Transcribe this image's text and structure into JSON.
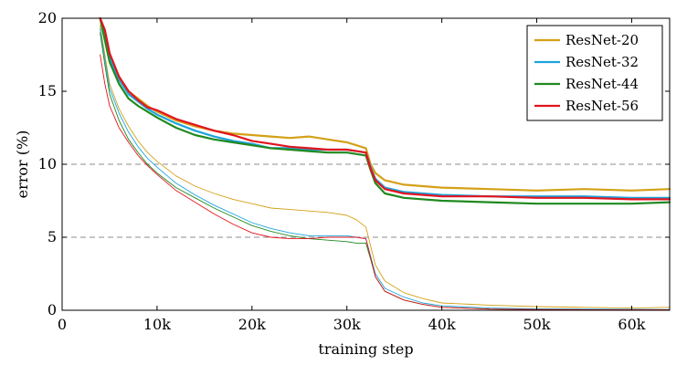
{
  "chart_data": {
    "type": "line",
    "xlabel": "training step",
    "ylabel": "error (%)",
    "xlim": [
      0,
      64000
    ],
    "ylim": [
      0,
      20
    ],
    "x_ticks": [
      {
        "value": 0,
        "label": "0"
      },
      {
        "value": 10000,
        "label": "10k"
      },
      {
        "value": 20000,
        "label": "20k"
      },
      {
        "value": 30000,
        "label": "30k"
      },
      {
        "value": 40000,
        "label": "40k"
      },
      {
        "value": 50000,
        "label": "50k"
      },
      {
        "value": 60000,
        "label": "60k"
      }
    ],
    "y_ticks": [
      {
        "value": 0,
        "label": "0"
      },
      {
        "value": 5,
        "label": "5"
      },
      {
        "value": 10,
        "label": "10"
      },
      {
        "value": 15,
        "label": "15"
      },
      {
        "value": 20,
        "label": "20"
      }
    ],
    "reference_lines": [
      5,
      10
    ],
    "legend_position": "top-right",
    "series": [
      {
        "name": "ResNet-20",
        "color": "#d4a017",
        "style": "thick",
        "x": [
          4000,
          4500,
          5000,
          6000,
          7000,
          8000,
          9000,
          10000,
          12000,
          14000,
          16000,
          18000,
          20000,
          22000,
          24000,
          26000,
          28000,
          30000,
          31000,
          32000,
          32500,
          33000,
          34000,
          36000,
          40000,
          45000,
          50000,
          55000,
          60000,
          64000
        ],
        "y": [
          20.5,
          19.0,
          17.5,
          16.0,
          15.0,
          14.5,
          14.0,
          13.6,
          13.0,
          12.6,
          12.3,
          12.1,
          12.0,
          11.9,
          11.8,
          11.9,
          11.7,
          11.5,
          11.3,
          11.1,
          10.0,
          9.4,
          8.9,
          8.6,
          8.4,
          8.3,
          8.2,
          8.3,
          8.2,
          8.3
        ]
      },
      {
        "name": "ResNet-32",
        "color": "#1ea3dc",
        "style": "thick",
        "x": [
          4000,
          4500,
          5000,
          6000,
          7000,
          8000,
          9000,
          10000,
          12000,
          14000,
          16000,
          18000,
          20000,
          22000,
          24000,
          26000,
          28000,
          30000,
          31000,
          32000,
          32500,
          33000,
          34000,
          36000,
          40000,
          45000,
          50000,
          55000,
          60000,
          64000
        ],
        "y": [
          20.5,
          19.0,
          17.3,
          15.8,
          14.8,
          14.3,
          13.8,
          13.4,
          12.8,
          12.3,
          11.9,
          11.6,
          11.4,
          11.1,
          11.1,
          11.0,
          11.0,
          11.0,
          10.9,
          10.8,
          9.8,
          9.0,
          8.4,
          8.1,
          7.9,
          7.8,
          7.8,
          7.8,
          7.7,
          7.7
        ]
      },
      {
        "name": "ResNet-44",
        "color": "#1f8a1f",
        "style": "thick",
        "x": [
          4000,
          4500,
          5000,
          6000,
          7000,
          8000,
          9000,
          10000,
          12000,
          14000,
          16000,
          18000,
          20000,
          22000,
          24000,
          26000,
          28000,
          30000,
          31000,
          32000,
          32500,
          33000,
          34000,
          36000,
          40000,
          45000,
          50000,
          55000,
          60000,
          64000
        ],
        "y": [
          20.5,
          18.5,
          17.0,
          15.5,
          14.5,
          14.0,
          13.6,
          13.2,
          12.5,
          12.0,
          11.7,
          11.5,
          11.3,
          11.1,
          11.0,
          10.9,
          10.8,
          10.8,
          10.7,
          10.6,
          9.6,
          8.7,
          8.0,
          7.7,
          7.5,
          7.4,
          7.3,
          7.3,
          7.3,
          7.4
        ]
      },
      {
        "name": "ResNet-56",
        "color": "#e3141e",
        "style": "thick",
        "x": [
          4000,
          4500,
          5000,
          6000,
          7000,
          8000,
          9000,
          10000,
          12000,
          14000,
          16000,
          18000,
          20000,
          22000,
          24000,
          26000,
          28000,
          30000,
          31000,
          32000,
          32500,
          33000,
          34000,
          36000,
          40000,
          45000,
          50000,
          55000,
          60000,
          64000
        ],
        "y": [
          20.5,
          19.2,
          17.6,
          16.0,
          15.0,
          14.4,
          13.9,
          13.7,
          13.1,
          12.7,
          12.3,
          12.0,
          11.6,
          11.4,
          11.2,
          11.1,
          11.0,
          11.0,
          10.9,
          10.8,
          9.7,
          8.9,
          8.3,
          8.0,
          7.8,
          7.8,
          7.7,
          7.7,
          7.6,
          7.6
        ]
      },
      {
        "name": "",
        "color": "#d4a017",
        "style": "thin",
        "x": [
          4000,
          4500,
          5000,
          6000,
          7000,
          8000,
          9000,
          10000,
          12000,
          14000,
          16000,
          18000,
          20000,
          22000,
          24000,
          26000,
          28000,
          30000,
          31000,
          32000,
          32500,
          33000,
          34000,
          36000,
          38000,
          40000,
          45000,
          50000,
          55000,
          60000,
          64000
        ],
        "y": [
          19.5,
          17.5,
          15.5,
          13.8,
          12.6,
          11.6,
          10.8,
          10.2,
          9.2,
          8.5,
          8.0,
          7.6,
          7.3,
          7.0,
          6.9,
          6.8,
          6.7,
          6.5,
          6.2,
          5.7,
          4.4,
          3.1,
          2.0,
          1.2,
          0.8,
          0.5,
          0.35,
          0.25,
          0.2,
          0.15,
          0.2
        ]
      },
      {
        "name": "",
        "color": "#1ea3dc",
        "style": "thin",
        "x": [
          4000,
          4500,
          5000,
          6000,
          7000,
          8000,
          9000,
          10000,
          12000,
          14000,
          16000,
          18000,
          20000,
          22000,
          24000,
          26000,
          28000,
          30000,
          31000,
          32000,
          32500,
          33000,
          34000,
          36000,
          38000,
          40000,
          45000,
          50000,
          55000,
          60000,
          64000
        ],
        "y": [
          19.3,
          17.2,
          15.2,
          13.5,
          12.2,
          11.2,
          10.4,
          9.8,
          8.7,
          7.9,
          7.2,
          6.6,
          6.0,
          5.6,
          5.3,
          5.1,
          5.1,
          5.1,
          5.0,
          4.9,
          3.7,
          2.5,
          1.5,
          0.9,
          0.5,
          0.3,
          0.15,
          0.1,
          0.08,
          0.06,
          0.05
        ]
      },
      {
        "name": "",
        "color": "#1f8a1f",
        "style": "thin",
        "x": [
          4000,
          4500,
          5000,
          6000,
          7000,
          8000,
          9000,
          10000,
          12000,
          14000,
          16000,
          18000,
          20000,
          22000,
          24000,
          26000,
          28000,
          30000,
          31000,
          32000,
          32500,
          33000,
          34000,
          36000,
          38000,
          40000,
          45000,
          50000,
          55000,
          60000,
          64000
        ],
        "y": [
          19.0,
          16.8,
          14.8,
          13.0,
          11.7,
          10.8,
          10.0,
          9.4,
          8.4,
          7.7,
          7.0,
          6.4,
          5.8,
          5.4,
          5.1,
          4.9,
          4.8,
          4.7,
          4.6,
          4.6,
          3.5,
          2.3,
          1.3,
          0.7,
          0.4,
          0.2,
          0.08,
          0.05,
          0.04,
          0.03,
          0.03
        ]
      },
      {
        "name": "",
        "color": "#e3141e",
        "style": "thin",
        "x": [
          4000,
          4500,
          5000,
          6000,
          7000,
          8000,
          9000,
          10000,
          12000,
          14000,
          16000,
          18000,
          20000,
          22000,
          24000,
          26000,
          28000,
          30000,
          31000,
          32000,
          32500,
          33000,
          34000,
          36000,
          38000,
          40000,
          45000,
          50000,
          55000,
          60000,
          64000
        ],
        "y": [
          17.5,
          15.5,
          14.0,
          12.5,
          11.5,
          10.6,
          9.9,
          9.3,
          8.2,
          7.4,
          6.6,
          5.9,
          5.3,
          5.0,
          4.9,
          4.9,
          5.0,
          5.0,
          5.0,
          4.9,
          3.6,
          2.3,
          1.3,
          0.7,
          0.4,
          0.2,
          0.08,
          0.05,
          0.04,
          0.03,
          0.03
        ]
      }
    ]
  }
}
